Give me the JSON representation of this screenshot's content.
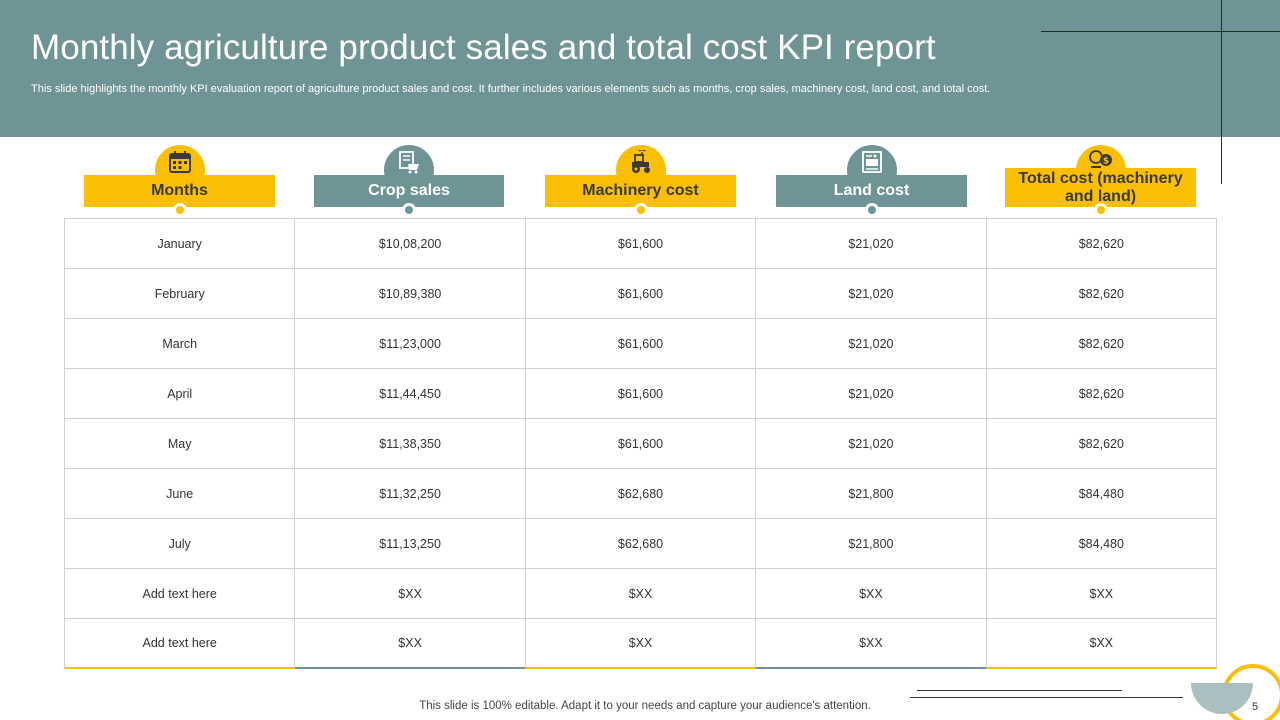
{
  "slide": {
    "title": "Monthly agriculture product sales and total cost KPI report",
    "subtitle": "This slide highlights the monthly KPI evaluation report of agriculture product sales and cost. It further includes various elements such as months, crop sales, machinery cost, land cost, and total cost.",
    "footer_note": "This slide is 100% editable. Adapt it to your needs and capture your audience's attention.",
    "page_number": "5"
  },
  "colors": {
    "header_bg": "#6f9495",
    "accent_yellow": "#f9bf00",
    "accent_teal": "#6f9495"
  },
  "columns": [
    {
      "label": "Months",
      "icon": "calendar-icon"
    },
    {
      "label": "Crop sales",
      "icon": "cart-icon"
    },
    {
      "label": "Machinery cost",
      "icon": "tractor-icon"
    },
    {
      "label": "Land cost",
      "icon": "land-document-icon"
    },
    {
      "label": "Total cost (machinery and land)",
      "icon": "coins-icon"
    }
  ],
  "rows": [
    [
      "January",
      "$10,08,200",
      "$61,600",
      "$21,020",
      "$82,620"
    ],
    [
      "February",
      "$10,89,380",
      "$61,600",
      "$21,020",
      "$82,620"
    ],
    [
      "March",
      "$11,23,000",
      "$61,600",
      "$21,020",
      "$82,620"
    ],
    [
      "April",
      "$11,44,450",
      "$61,600",
      "$21,020",
      "$82,620"
    ],
    [
      "May",
      "$11,38,350",
      "$61,600",
      "$21,020",
      "$82,620"
    ],
    [
      "June",
      "$11,32,250",
      "$62,680",
      "$21,800",
      "$84,480"
    ],
    [
      "July",
      "$11,13,250",
      "$62,680",
      "$21,800",
      "$84,480"
    ],
    [
      "Add text here",
      "$XX",
      "$XX",
      "$XX",
      "$XX"
    ],
    [
      "Add text here",
      "$XX",
      "$XX",
      "$XX",
      "$XX"
    ]
  ]
}
